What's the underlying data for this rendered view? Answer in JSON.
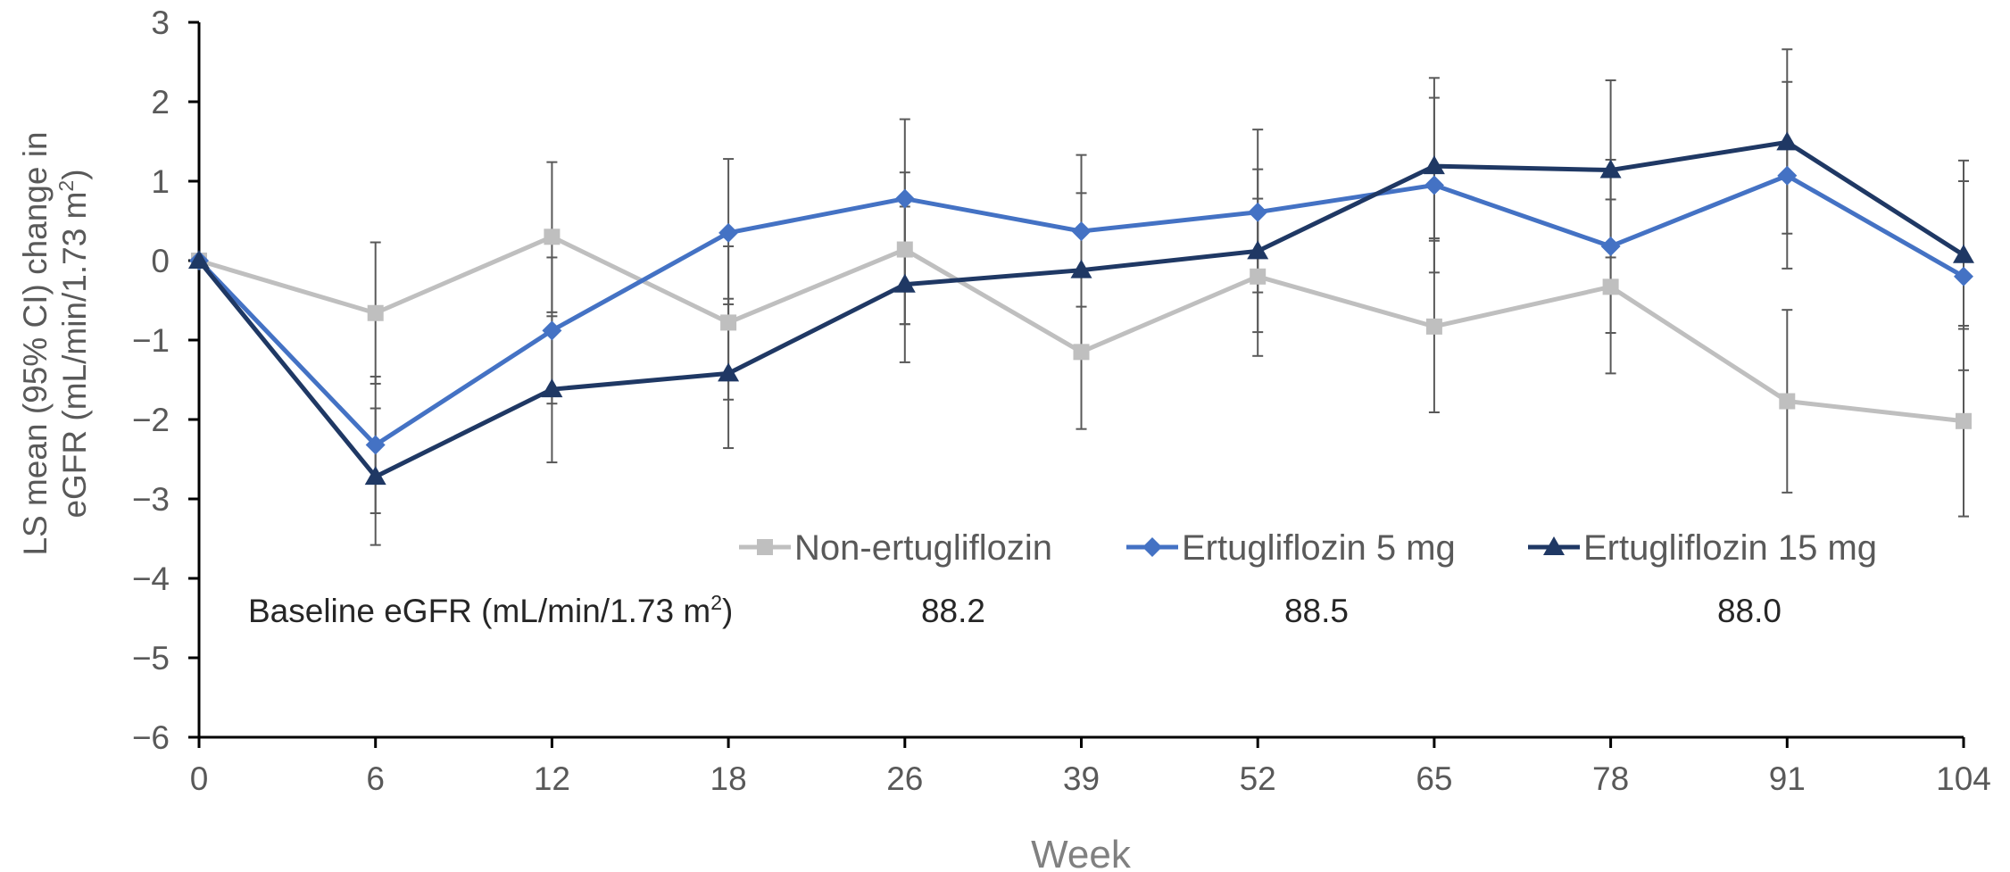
{
  "chart_data": {
    "type": "line",
    "title": "",
    "xlabel": "Week",
    "ylabel_line1": "LS mean (95% CI) change in",
    "ylabel_line2_pre": "eGFR (mL/min/1.73 m",
    "ylabel_line2_sup": "2",
    "ylabel_line2_post": ")",
    "categories": [
      "0",
      "6",
      "12",
      "18",
      "26",
      "39",
      "52",
      "65",
      "78",
      "91",
      "104"
    ],
    "y_ticks": [
      "3",
      "2",
      "1",
      "0",
      "−1",
      "−2",
      "−3",
      "−4",
      "−5",
      "−6"
    ],
    "ylim": [
      -6,
      3
    ],
    "grid": false,
    "legend_position": "bottom-right inside plot",
    "series": [
      {
        "name": "Non-ertugliflozin",
        "color": "#BFBFBF",
        "marker": "square",
        "values": [
          0,
          -0.66,
          0.3,
          -0.78,
          0.14,
          -1.15,
          -0.2,
          -0.83,
          -0.33,
          -1.77,
          -2.02
        ],
        "ci_lower": [
          0,
          -1.55,
          -0.65,
          -1.75,
          -0.8,
          -2.12,
          -1.2,
          -1.91,
          -1.42,
          -2.92,
          -3.22
        ],
        "ci_upper": [
          0,
          0.23,
          1.24,
          0.18,
          1.11,
          -0.18,
          0.78,
          0.25,
          0.77,
          -0.62,
          -0.82
        ]
      },
      {
        "name": "Ertugliflozin 5 mg",
        "color": "#4472C4",
        "marker": "diamond",
        "values": [
          0,
          -2.32,
          -0.88,
          0.35,
          0.78,
          0.37,
          0.61,
          0.95,
          0.18,
          1.07,
          -0.2
        ],
        "ci_lower": [
          0,
          -3.18,
          -1.8,
          -0.55,
          -0.8,
          -0.58,
          -0.4,
          -0.15,
          -0.91,
          -0.1,
          -1.38
        ],
        "ci_upper": [
          0,
          -1.46,
          0.04,
          1.28,
          1.78,
          1.33,
          1.65,
          2.05,
          1.27,
          2.25,
          1.0
        ]
      },
      {
        "name": "Ertugliflozin 15 mg",
        "color": "#1F3864",
        "marker": "triangle",
        "values": [
          0,
          -2.72,
          -1.62,
          -1.42,
          -0.3,
          -0.12,
          0.12,
          1.19,
          1.14,
          1.49,
          0.07
        ],
        "ci_lower": [
          0,
          -3.58,
          -2.54,
          -2.36,
          -1.28,
          -1.08,
          -0.9,
          0.28,
          0.04,
          0.34,
          -0.86
        ],
        "ci_upper": [
          0,
          -1.86,
          -0.7,
          -0.48,
          0.68,
          0.85,
          1.15,
          2.3,
          2.27,
          2.66,
          1.26
        ]
      }
    ],
    "baseline": {
      "label_pre": "Baseline eGFR (mL/min/1.73 m",
      "label_sup": "2",
      "label_post": ")",
      "values": [
        "88.2",
        "88.5",
        "88.0"
      ]
    }
  }
}
